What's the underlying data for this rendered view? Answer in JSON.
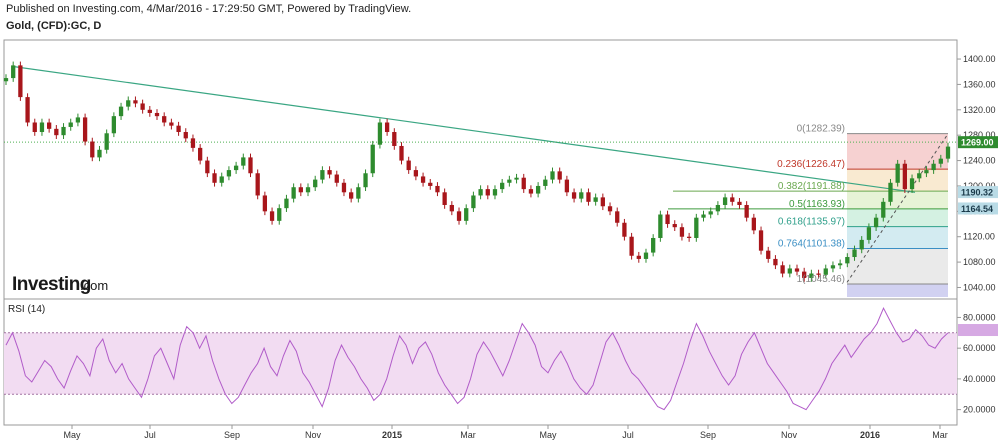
{
  "header": {
    "published": "Published on Investing.com, 4/Mar/2016 - 17:29:50 GMT, Powered by TradingView.",
    "symbol": "Gold, (CFD):GC, D"
  },
  "watermark": {
    "brand": "Investing",
    "suffix": ".com"
  },
  "colors": {
    "up_candle": "#2e8b2e",
    "down_candle": "#a8161b",
    "trendline": "#3aa683",
    "rsi_line": "#b15cc9",
    "rsi_band": "#f2dcf2",
    "price_tag": "#2e8b2e",
    "level_tag": "#b9dbe6"
  },
  "chart_data": [
    {
      "type": "line",
      "title": "Gold, (CFD):GC, D",
      "series": [
        {
          "values": [
            1370,
            1390,
            1340,
            1300,
            1285,
            1300,
            1290,
            1280,
            1293,
            1300,
            1308,
            1270,
            1245,
            1257,
            1283,
            1310,
            1325,
            1335,
            1330,
            1320,
            1315,
            1310,
            1300,
            1295,
            1285,
            1275,
            1260,
            1240,
            1220,
            1205,
            1215,
            1225,
            1232,
            1245,
            1220,
            1185,
            1160,
            1145,
            1165,
            1180,
            1198,
            1190,
            1198,
            1210,
            1225,
            1218,
            1205,
            1190,
            1180,
            1198,
            1220,
            1265,
            1300,
            1285,
            1263,
            1240,
            1225,
            1215,
            1205,
            1200,
            1190,
            1170,
            1160,
            1145,
            1165,
            1185,
            1195,
            1185,
            1195,
            1205,
            1210,
            1213,
            1195,
            1188,
            1200,
            1210,
            1223,
            1210,
            1190,
            1180,
            1190,
            1175,
            1182,
            1168,
            1160,
            1142,
            1120,
            1090,
            1085,
            1095,
            1118,
            1155,
            1140,
            1135,
            1120,
            1118,
            1150,
            1155,
            1160,
            1170,
            1182,
            1175,
            1170,
            1150,
            1130,
            1098,
            1085,
            1075,
            1062,
            1070,
            1065,
            1055,
            1062,
            1060,
            1070,
            1075,
            1078,
            1088,
            1100,
            1115,
            1135,
            1150,
            1175,
            1205,
            1235,
            1195,
            1212,
            1220,
            1225,
            1235,
            1243,
            1262
          ]
        }
      ],
      "x_axis_labels": [
        "May",
        "Jul",
        "Sep",
        "Nov",
        "2015",
        "Mar",
        "May",
        "Jul",
        "Sep",
        "Nov",
        "2016",
        "Mar"
      ],
      "y_ticks": [
        1040.0,
        1080.0,
        1120.0,
        1160.0,
        1200.0,
        1240.0,
        1280.0,
        1320.0,
        1360.0,
        1400.0
      ],
      "y_tick_labels": [
        "1040.00",
        "1080.00",
        "1120.00",
        "1160.00",
        "1200.00",
        "1240.00",
        "1280.00",
        "1320.00",
        "1360.00",
        "1400.00"
      ],
      "ylim": [
        1025,
        1430
      ],
      "last_price": "1269.00",
      "price_tags": [
        "1269.00",
        "1190.32",
        "1164.54"
      ],
      "fibonacci": [
        {
          "label": "0(1282.39)",
          "value": 1282.39,
          "color": "#888888"
        },
        {
          "label": "0.236(1226.47)",
          "value": 1226.47,
          "color": "#c0392b"
        },
        {
          "label": "0.382(1191.88)",
          "value": 1191.88,
          "color": "#6aa84f"
        },
        {
          "label": "0.5(1163.93)",
          "value": 1163.93,
          "color": "#3d9b3d"
        },
        {
          "label": "0.618(1135.97)",
          "value": 1135.97,
          "color": "#2e9f8a"
        },
        {
          "label": "0.764(1101.38)",
          "value": 1101.38,
          "color": "#3b8fc4"
        },
        {
          "label": "1(1045.46)",
          "value": 1045.46,
          "color": "#888888"
        }
      ],
      "grid": false
    },
    {
      "type": "line",
      "title": "RSI (14)",
      "series": [
        {
          "values": [
            62,
            70,
            58,
            42,
            38,
            45,
            52,
            48,
            40,
            34,
            45,
            55,
            50,
            42,
            60,
            66,
            52,
            44,
            50,
            40,
            34,
            28,
            40,
            55,
            60,
            50,
            40,
            62,
            74,
            70,
            60,
            68,
            52,
            40,
            30,
            24,
            28,
            36,
            44,
            50,
            60,
            48,
            42,
            55,
            65,
            58,
            44,
            38,
            30,
            22,
            34,
            52,
            62,
            54,
            48,
            40,
            34,
            26,
            30,
            40,
            55,
            68,
            62,
            50,
            60,
            64,
            56,
            44,
            36,
            30,
            24,
            28,
            40,
            56,
            64,
            58,
            50,
            42,
            52,
            64,
            76,
            70,
            62,
            48,
            44,
            52,
            58,
            50,
            40,
            34,
            30,
            36,
            50,
            64,
            70,
            62,
            52,
            44,
            40,
            34,
            28,
            22,
            20,
            26,
            38,
            50,
            64,
            76,
            68,
            58,
            50,
            42,
            36,
            42,
            56,
            64,
            70,
            60,
            50,
            44,
            38,
            32,
            24,
            22,
            20,
            26,
            32,
            40,
            50,
            56,
            62,
            54,
            60,
            66,
            70,
            76,
            86,
            78,
            70,
            64,
            66,
            72,
            68,
            62,
            60,
            66,
            70
          ]
        }
      ],
      "y_ticks": [
        20.0,
        40.0,
        60.0,
        80.0
      ],
      "y_tick_labels": [
        "20.0000",
        "40.0000",
        "60.0000",
        "80.0000"
      ],
      "ylim": [
        10,
        92
      ],
      "levels": [
        30,
        70
      ],
      "last_value": "71.81",
      "grid": false
    }
  ]
}
